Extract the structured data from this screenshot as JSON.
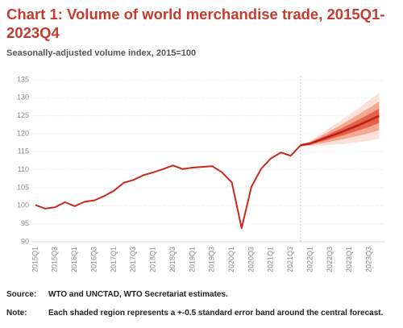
{
  "chart_data": {
    "type": "line",
    "title": "Chart 1: Volume of world merchandise trade, 2015Q1-2023Q4",
    "subtitle": "Seasonally-adjusted volume index, 2015=100",
    "categories": [
      "2015Q1",
      null,
      "2015Q3",
      null,
      "2016Q1",
      null,
      "2016Q3",
      null,
      "2017Q1",
      null,
      "2017Q3",
      null,
      "2018Q1",
      null,
      "2018Q3",
      null,
      "2019Q1",
      null,
      "2019Q3",
      null,
      "2020Q1",
      null,
      "2020Q3",
      null,
      "2021Q1",
      null,
      "2021Q3",
      null,
      "2022Q1",
      null,
      "2022Q3",
      null,
      "2023Q1",
      null,
      "2023Q3",
      null
    ],
    "series": [
      {
        "color": "#c8281e",
        "values": [
          100.2,
          99.2,
          99.6,
          101.0,
          99.9,
          101.1,
          101.5,
          102.7,
          104.2,
          106.4,
          107.2,
          108.5,
          109.3,
          110.2,
          111.2,
          110.2,
          110.6,
          110.8,
          111.0,
          109.3,
          106.5,
          93.8,
          105.3,
          110.3,
          113.2,
          114.8,
          113.9,
          116.8,
          null,
          null,
          null,
          null,
          null,
          null,
          null,
          null
        ]
      },
      {
        "color": "#c01f17",
        "values": [
          null,
          null,
          null,
          null,
          null,
          null,
          null,
          null,
          null,
          null,
          null,
          null,
          null,
          null,
          null,
          null,
          null,
          null,
          null,
          null,
          null,
          null,
          null,
          null,
          null,
          null,
          null,
          116.8,
          117.3,
          118.3,
          119.3,
          120.3,
          121.4,
          122.5,
          123.7,
          125.0
        ]
      }
    ],
    "bands": [
      {
        "color": "#fbe1d7",
        "lower": [
          null,
          null,
          null,
          null,
          null,
          null,
          null,
          null,
          null,
          null,
          null,
          null,
          null,
          null,
          null,
          null,
          null,
          null,
          null,
          null,
          null,
          null,
          null,
          null,
          null,
          null,
          null,
          116.8,
          116.5,
          116.7,
          116.9,
          117.1,
          117.4,
          117.7,
          118.1,
          118.6
        ],
        "upper": [
          null,
          null,
          null,
          null,
          null,
          null,
          null,
          null,
          null,
          null,
          null,
          null,
          null,
          null,
          null,
          null,
          null,
          null,
          null,
          null,
          null,
          null,
          null,
          null,
          null,
          null,
          null,
          116.8,
          118.1,
          119.9,
          121.7,
          123.5,
          125.4,
          127.3,
          129.3,
          131.4
        ]
      },
      {
        "color": "#f4a891",
        "lower": [
          null,
          null,
          null,
          null,
          null,
          null,
          null,
          null,
          null,
          null,
          null,
          null,
          null,
          null,
          null,
          null,
          null,
          null,
          null,
          null,
          null,
          null,
          null,
          null,
          null,
          null,
          null,
          116.8,
          116.8,
          117.3,
          117.8,
          118.3,
          118.9,
          119.5,
          120.2,
          121.0
        ],
        "upper": [
          null,
          null,
          null,
          null,
          null,
          null,
          null,
          null,
          null,
          null,
          null,
          null,
          null,
          null,
          null,
          null,
          null,
          null,
          null,
          null,
          null,
          null,
          null,
          null,
          null,
          null,
          null,
          116.8,
          117.8,
          119.3,
          120.8,
          122.3,
          123.9,
          125.5,
          127.2,
          129.0
        ]
      },
      {
        "color": "#e4634c",
        "lower": [
          null,
          null,
          null,
          null,
          null,
          null,
          null,
          null,
          null,
          null,
          null,
          null,
          null,
          null,
          null,
          null,
          null,
          null,
          null,
          null,
          null,
          null,
          null,
          null,
          null,
          null,
          null,
          116.8,
          117.05,
          117.8,
          118.55,
          119.3,
          120.15,
          121.0,
          121.95,
          123.0
        ],
        "upper": [
          null,
          null,
          null,
          null,
          null,
          null,
          null,
          null,
          null,
          null,
          null,
          null,
          null,
          null,
          null,
          null,
          null,
          null,
          null,
          null,
          null,
          null,
          null,
          null,
          null,
          null,
          null,
          116.8,
          117.55,
          118.8,
          120.05,
          121.3,
          122.65,
          124.0,
          125.45,
          127.0
        ]
      }
    ],
    "forecast_start": 27,
    "ylim": [
      90,
      135
    ],
    "yticks": [
      90,
      95,
      100,
      105,
      110,
      115,
      120,
      125,
      130,
      135
    ],
    "grid": true,
    "notes": [
      {
        "label": "Source:",
        "text": "WTO and UNCTAD, WTO Secretariat estimates."
      },
      {
        "label": "Note:",
        "text": "Each shaded region represents a +-0.5 standard error band around the central forecast."
      }
    ]
  }
}
